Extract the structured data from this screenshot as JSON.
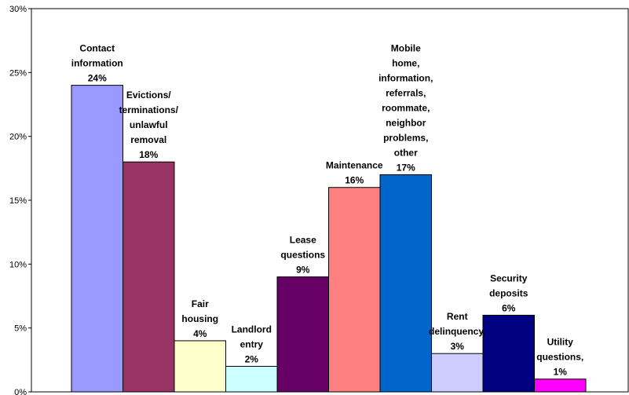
{
  "chart_data": {
    "type": "bar",
    "title": "",
    "xlabel": "",
    "ylabel": "",
    "ylim": [
      0,
      30
    ],
    "y_ticks": [
      "0%",
      "5%",
      "10%",
      "15%",
      "20%",
      "25%",
      "30%"
    ],
    "grid": false,
    "legend": "none",
    "categories": [
      "Contact information",
      "Evictions/ terminations/ unlawful removal",
      "Fair housing",
      "Landlord entry",
      "Lease questions",
      "Maintenance",
      "Mobile home, information, referrals, roommate, neighbor problems, other",
      "Rent delinquency",
      "Security deposits",
      "Utility questions,"
    ],
    "values": [
      24,
      18,
      4,
      2,
      9,
      16,
      17,
      3,
      6,
      1
    ],
    "bar_labels": [
      [
        "Contact",
        "information",
        "24%"
      ],
      [
        "Evictions/",
        "terminations/",
        "unlawful",
        "removal",
        "18%"
      ],
      [
        "Fair",
        "housing",
        "4%"
      ],
      [
        "Landlord",
        "entry",
        "2%"
      ],
      [
        "Lease",
        "questions",
        "9%"
      ],
      [
        "Maintenance",
        "16%"
      ],
      [
        "Mobile",
        "home,",
        "information,",
        "referrals,",
        "roommate,",
        "neighbor",
        "problems,",
        "other",
        "17%"
      ],
      [
        "Rent",
        "delinquency,",
        "3%"
      ],
      [
        "Security",
        "deposits",
        "6%"
      ],
      [
        "Utility",
        "questions,",
        "1%"
      ]
    ],
    "colors": [
      "#9999FF",
      "#993366",
      "#FFFFCC",
      "#CCFFFF",
      "#660066",
      "#FF8080",
      "#0066CC",
      "#CCCCFF",
      "#000080",
      "#FF00FF"
    ]
  }
}
